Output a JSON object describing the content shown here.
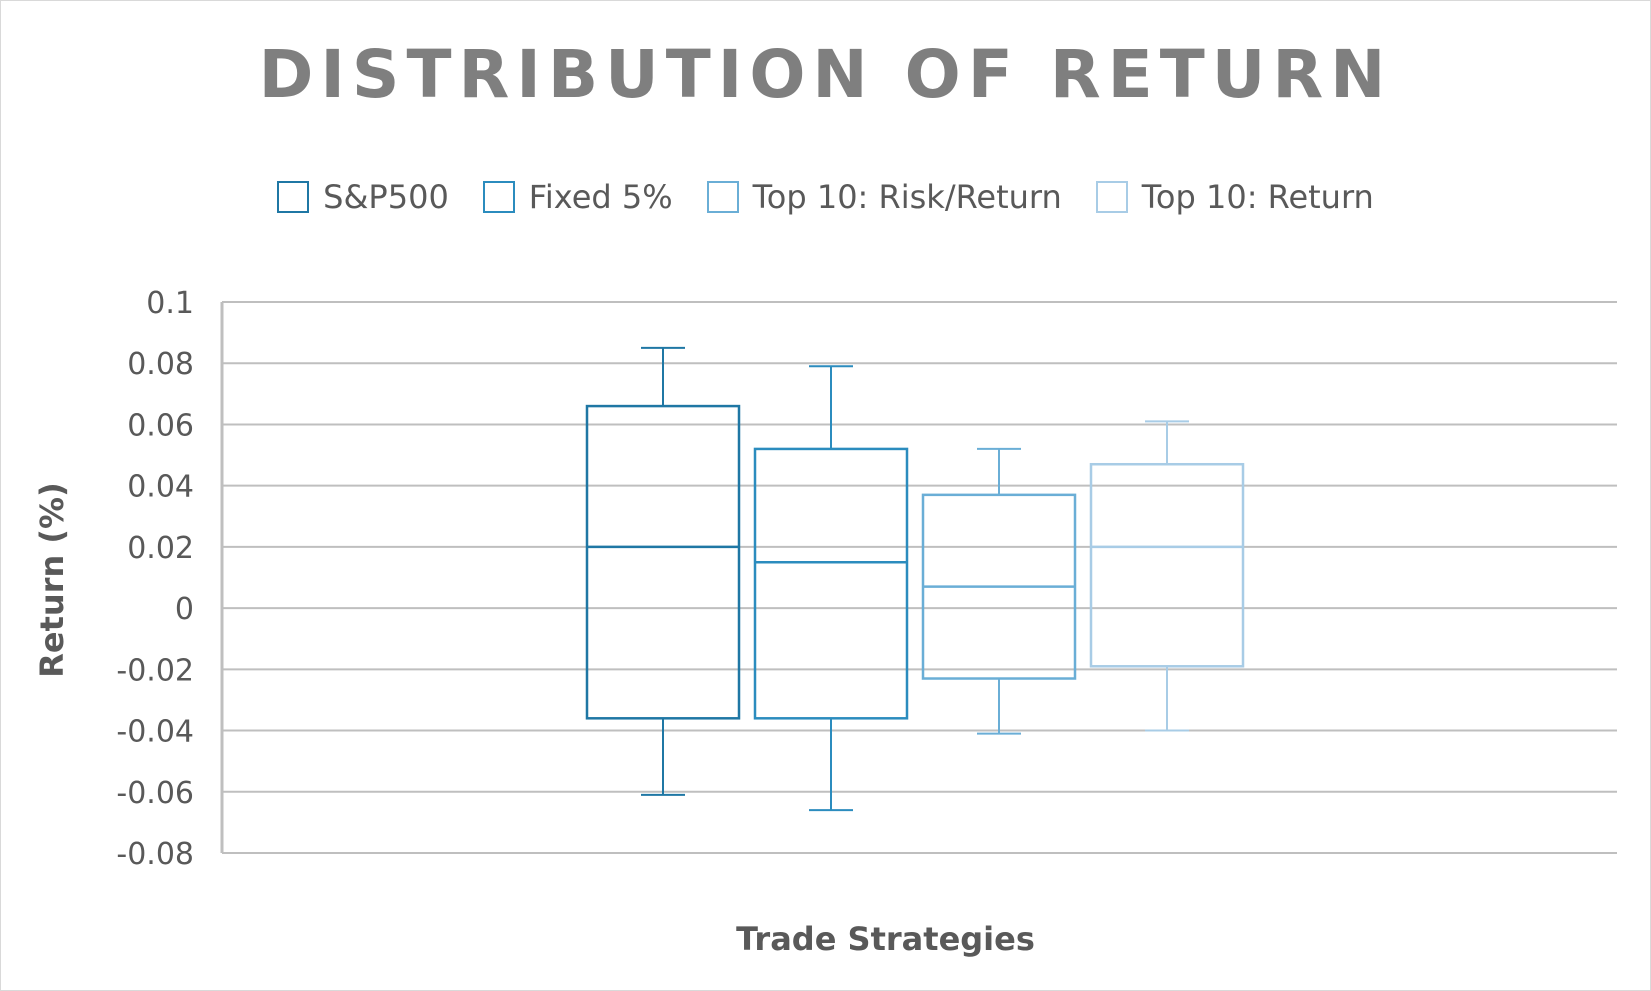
{
  "chart_data": {
    "type": "box",
    "title": "DISTRIBUTION OF RETURN",
    "xlabel": "Trade Strategies",
    "ylabel": "Return (%)",
    "ylim": [
      -0.08,
      0.1
    ],
    "y_ticks": [
      "0.1",
      "0.08",
      "0.06",
      "0.04",
      "0.02",
      "0",
      "-0.02",
      "-0.04",
      "-0.06",
      "-0.08"
    ],
    "grid": true,
    "legend_position": "top",
    "series": [
      {
        "name": "S&P500",
        "color": "#1f77a4",
        "min": -0.061,
        "q1": -0.036,
        "median": 0.02,
        "q3": 0.066,
        "max": 0.085
      },
      {
        "name": "Fixed 5%",
        "color": "#2b8cbe",
        "min": -0.066,
        "q1": -0.036,
        "median": 0.015,
        "q3": 0.052,
        "max": 0.079
      },
      {
        "name": "Top 10: Risk/Return",
        "color": "#6aaed6",
        "min": -0.041,
        "q1": -0.023,
        "median": 0.007,
        "q3": 0.037,
        "max": 0.052
      },
      {
        "name": "Top 10: Return",
        "color": "#a8cce6",
        "min": -0.04,
        "q1": -0.019,
        "median": 0.02,
        "q3": 0.047,
        "max": 0.061
      }
    ]
  }
}
